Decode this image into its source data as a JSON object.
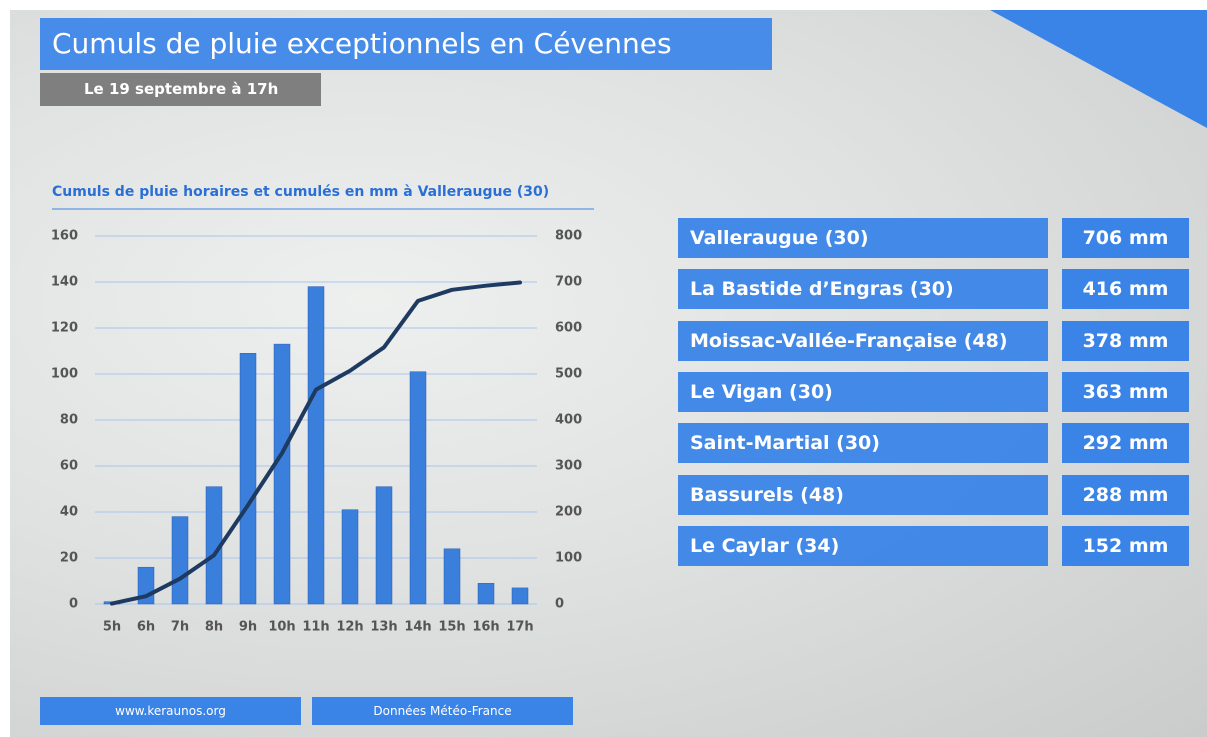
{
  "header": {
    "title": "Cumuls de pluie exceptionnels en Cévennes",
    "subtitle": "Le 19 septembre à 17h"
  },
  "chart_data": {
    "type": "bar",
    "title": "Cumuls de pluie horaires et cumulés en mm à Valleraugue (30)",
    "categories": [
      "5h",
      "6h",
      "7h",
      "8h",
      "9h",
      "10h",
      "11h",
      "12h",
      "13h",
      "14h",
      "15h",
      "16h",
      "17h"
    ],
    "series": [
      {
        "type": "bar",
        "color": "#3b7fdc",
        "values": [
          1,
          16,
          38,
          51,
          109,
          113,
          138,
          41,
          51,
          101,
          24,
          9,
          7
        ]
      },
      {
        "type": "line",
        "axis": "y2",
        "color": "#1f3a60",
        "values": [
          1,
          17,
          55,
          106,
          215,
          328,
          466,
          507,
          558,
          659,
          683,
          692,
          699
        ]
      }
    ],
    "ylim": [
      0,
      160
    ],
    "yticks": [
      0,
      20,
      40,
      60,
      80,
      100,
      120,
      140,
      160
    ],
    "y2lim": [
      0,
      800
    ],
    "y2ticks": [
      0,
      100,
      200,
      300,
      400,
      500,
      600,
      700,
      800
    ],
    "grid": true
  },
  "stations": [
    {
      "name": "Valleraugue (30)",
      "value": "706 mm"
    },
    {
      "name": "La Bastide d’Engras (30)",
      "value": "416 mm"
    },
    {
      "name": "Moissac-Vallée-Française (48)",
      "value": "378 mm"
    },
    {
      "name": "Le Vigan (30)",
      "value": "363 mm"
    },
    {
      "name": "Saint-Martial (30)",
      "value": "292 mm"
    },
    {
      "name": "Bassurels (48)",
      "value": "288 mm"
    },
    {
      "name": "Le Caylar (34)",
      "value": "152 mm"
    }
  ],
  "footer": [
    "www.keraunos.org",
    "Données Météo-France"
  ]
}
